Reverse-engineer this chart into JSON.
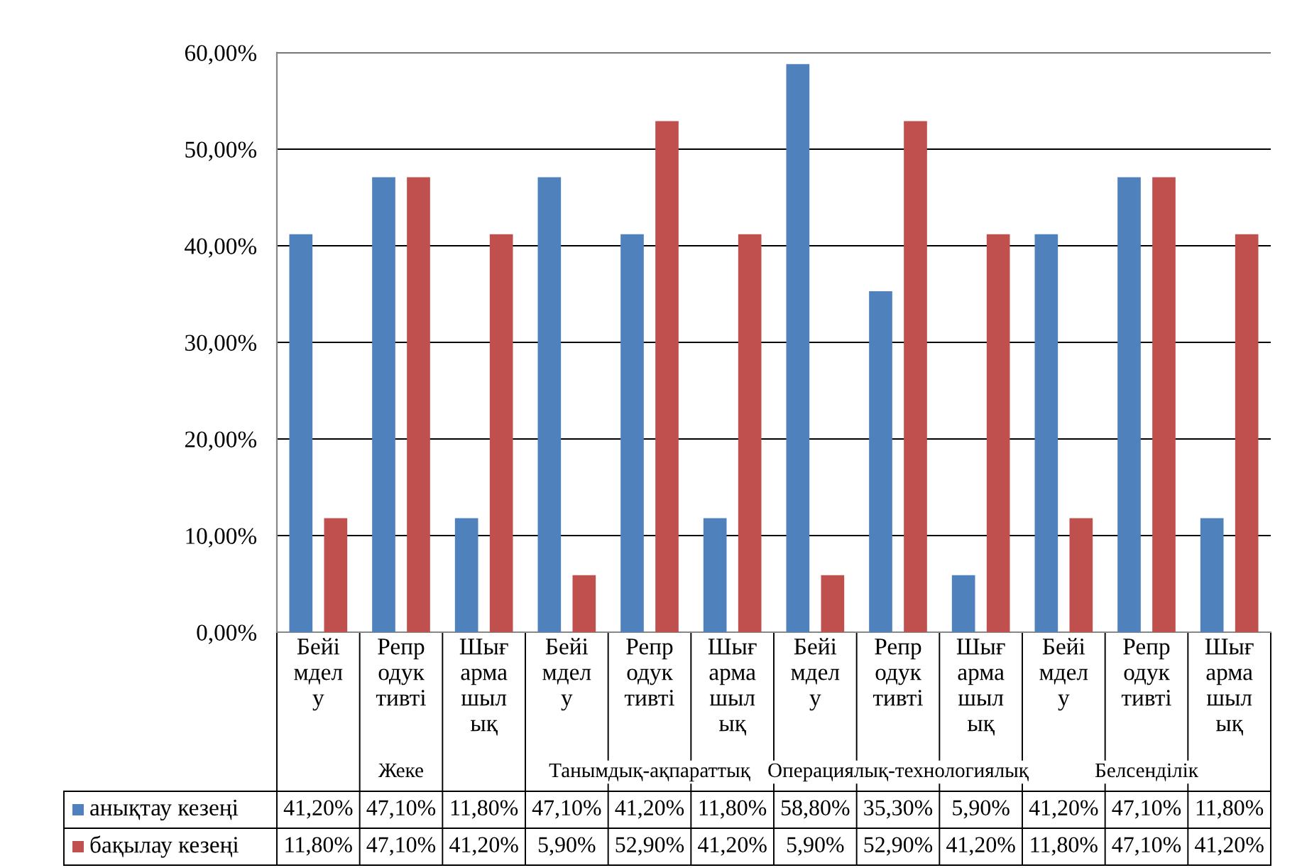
{
  "chart_data": {
    "type": "bar",
    "categories": [
      "Бейі\nмдел\nу",
      "Репр\nодук\nтивті",
      "Шығ\nарма\nшыл\nық",
      "Бейі\nмдел\nу",
      "Репр\nодук\nтивті",
      "Шығ\nарма\nшыл\nық",
      "Бейі\nмдел\nу",
      "Репр\nодук\nтивті",
      "Шығ\nарма\nшыл\nық",
      "Бейі\nмдел\nу",
      "Репр\nодук\nтивті",
      "Шығ\nарма\nшыл\nық"
    ],
    "series": [
      {
        "name": "анықтау кезеңі",
        "color": "#4f81bd",
        "values": [
          41.2,
          47.1,
          11.8,
          47.1,
          41.2,
          11.8,
          58.8,
          35.3,
          5.9,
          41.2,
          47.1,
          11.8
        ],
        "value_labels": [
          "41,20%",
          "47,10%",
          "11,80%",
          "47,10%",
          "41,20%",
          "11,80%",
          "58,80%",
          "35,30%",
          "5,90%",
          "41,20%",
          "47,10%",
          "11,80%"
        ]
      },
      {
        "name": "бақылау кезеңі",
        "color": "#c0504d",
        "values": [
          11.8,
          47.1,
          41.2,
          5.9,
          52.9,
          41.2,
          5.9,
          52.9,
          41.2,
          11.8,
          47.1,
          41.2
        ],
        "value_labels": [
          "11,80%",
          "47,10%",
          "41,20%",
          "5,90%",
          "52,90%",
          "41,20%",
          "5,90%",
          "52,90%",
          "41,20%",
          "11,80%",
          "47,10%",
          "41,20%"
        ]
      }
    ],
    "annotations": [
      "Жеке",
      "Танымдық-ақпараттық",
      "Операциялық-технологиялық",
      "Белсенділік"
    ],
    "ylim": [
      0,
      60
    ],
    "yticks": [
      {
        "value": 0,
        "label": "0,00%"
      },
      {
        "value": 10,
        "label": "10,00%"
      },
      {
        "value": 20,
        "label": "20,00%"
      },
      {
        "value": 30,
        "label": "30,00%"
      },
      {
        "value": 40,
        "label": "40,00%"
      },
      {
        "value": 50,
        "label": "50,00%"
      },
      {
        "value": 60,
        "label": "60,00%"
      }
    ],
    "grid": "y",
    "legend": "bottom left"
  }
}
